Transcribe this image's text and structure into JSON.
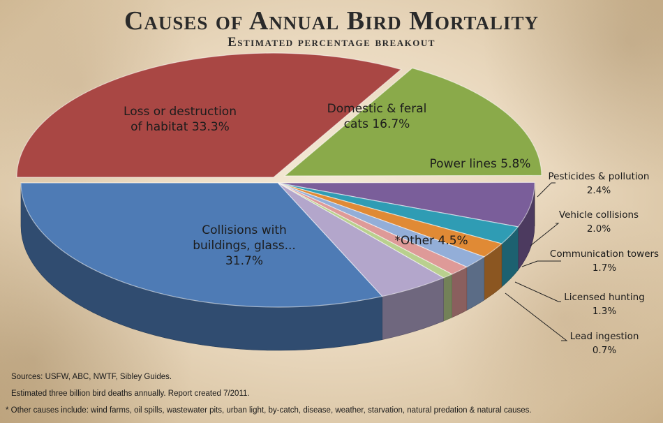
{
  "title": "Causes of Annual Bird Mortality",
  "subtitle": "Estimated percentage breakout",
  "notes": {
    "sources": "Sources: USFW, ABC, NWTF, Sibley Guides.",
    "estimate": "Estimated three billion bird deaths annually. Report created 7/2011.",
    "other_causes": "* Other causes include: wind farms, oil spills, wastewater pits, urban light, by-catch, disease, weather, starvation, natural predation & natural causes."
  },
  "chart_data": {
    "type": "pie",
    "style": "3d-exploded-free",
    "slices": [
      {
        "label": "Loss or destruction of habitat 33.3%",
        "lines": [
          "Loss or destruction",
          "of habitat 33.3%"
        ],
        "value": 33.3,
        "color": "#a94744",
        "label_placement": "inside"
      },
      {
        "label": "Domestic & feral cats 16.7%",
        "lines": [
          "Domestic & feral",
          "cats 16.7%"
        ],
        "value": 16.7,
        "color": "#8aaa4a",
        "label_placement": "inside"
      },
      {
        "label": "Power lines 5.8%",
        "lines": [
          "Power lines 5.8%"
        ],
        "value": 5.8,
        "color": "#7a5e9a",
        "label_placement": "inside"
      },
      {
        "label": "Pesticides & pollution 2.4%",
        "lines": [
          "Pesticides & pollution",
          "2.4%"
        ],
        "value": 2.4,
        "color": "#2f9cb4",
        "label_placement": "outside"
      },
      {
        "label": "Vehicle collisions 2.0%",
        "lines": [
          "Vehicle collisions",
          "2.0%"
        ],
        "value": 2.0,
        "color": "#e08a35",
        "label_placement": "outside"
      },
      {
        "label": "Communication towers 1.7%",
        "lines": [
          "Communication towers",
          "1.7%"
        ],
        "value": 1.7,
        "color": "#93aed8",
        "label_placement": "outside"
      },
      {
        "label": "Licensed hunting 1.3%",
        "lines": [
          "Licensed hunting",
          "1.3%"
        ],
        "value": 1.3,
        "color": "#de9a98",
        "label_placement": "outside"
      },
      {
        "label": "Lead ingestion 0.7%",
        "lines": [
          "Lead ingestion",
          "0.7%"
        ],
        "value": 0.7,
        "color": "#b9d08e",
        "label_placement": "outside"
      },
      {
        "label": "*Other 4.5%",
        "lines": [
          "*Other  4.5%"
        ],
        "value": 4.5,
        "color": "#b3a6cb",
        "label_placement": "inside"
      },
      {
        "label": "Collisions with buildings, glass... 31.7%",
        "lines": [
          "Collisions with",
          "buildings, glass...",
          "31.7%"
        ],
        "value": 31.7,
        "color": "#4e7bb5",
        "label_placement": "inside"
      }
    ]
  }
}
